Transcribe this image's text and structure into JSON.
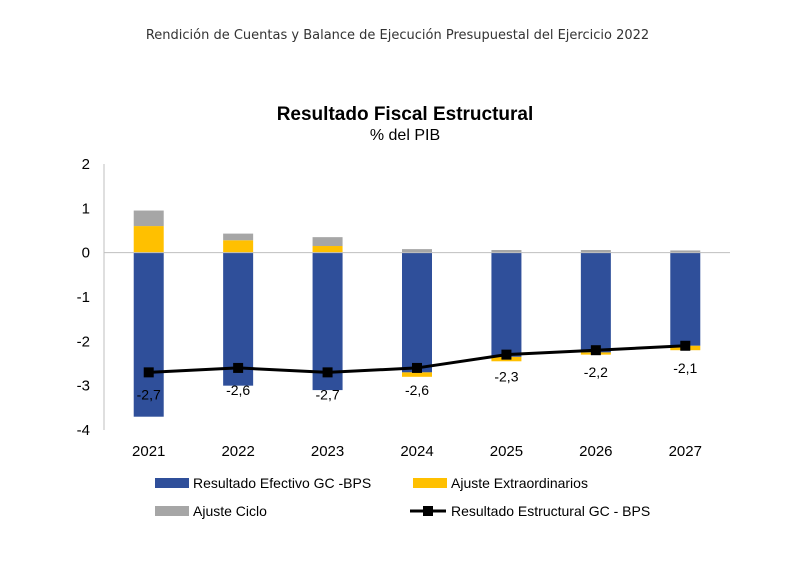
{
  "header": "Rendición de Cuentas y Balance de Ejecución Presupuestal del Ejercicio 2022",
  "colors": {
    "efectivo": "#2F4F9A",
    "extraordinarios": "#FFC000",
    "ciclo": "#A6A6A6",
    "estructural": "#000000"
  },
  "chart_data": {
    "type": "bar",
    "stacked": true,
    "title": "Resultado Fiscal Estructural",
    "subtitle": "% del PIB",
    "categories": [
      "2021",
      "2022",
      "2023",
      "2024",
      "2025",
      "2026",
      "2027"
    ],
    "ylim": [
      -4,
      2
    ],
    "yticks": [
      "2",
      "1",
      "0",
      "-1",
      "-2",
      "-3",
      "-4"
    ],
    "series": [
      {
        "name": "Resultado Efectivo GC -BPS",
        "kind": "bar",
        "values": [
          -3.7,
          -3.0,
          -3.1,
          -2.7,
          -2.35,
          -2.25,
          -2.1
        ]
      },
      {
        "name": "Ajuste Extraordinarios",
        "kind": "bar",
        "values": [
          0.6,
          0.28,
          0.15,
          -0.1,
          -0.1,
          -0.05,
          -0.1
        ]
      },
      {
        "name": "Ajuste Ciclo",
        "kind": "bar",
        "values": [
          0.35,
          0.15,
          0.2,
          0.08,
          0.06,
          0.06,
          0.05
        ]
      },
      {
        "name": "Resultado Estructural GC - BPS",
        "kind": "line",
        "values": [
          -2.7,
          -2.6,
          -2.7,
          -2.6,
          -2.3,
          -2.2,
          -2.1
        ]
      }
    ],
    "data_labels": [
      "-2,7",
      "-2,6",
      "-2,7",
      "-2,6",
      "-2,3",
      "-2,2",
      "-2,1"
    ],
    "legend": [
      "Resultado Efectivo GC -BPS",
      "Ajuste Extraordinarios",
      "Ajuste Ciclo",
      "Resultado Estructural GC - BPS"
    ]
  }
}
